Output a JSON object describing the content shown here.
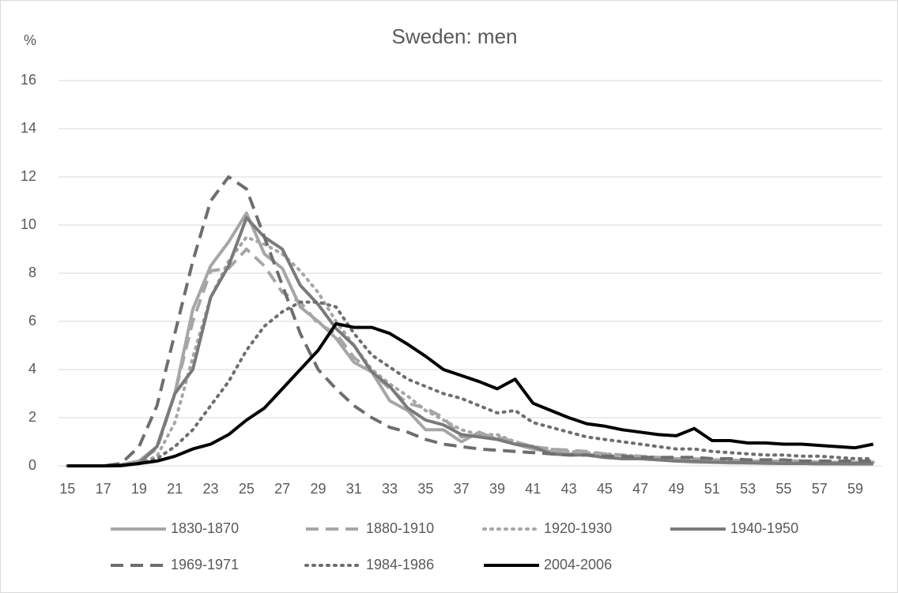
{
  "chart_data": {
    "type": "line",
    "title": "Sweden: men",
    "y_label": "%",
    "x": [
      15,
      16,
      17,
      18,
      19,
      20,
      21,
      22,
      23,
      24,
      25,
      26,
      27,
      28,
      29,
      30,
      31,
      32,
      33,
      34,
      35,
      36,
      37,
      38,
      39,
      40,
      41,
      42,
      43,
      44,
      45,
      46,
      47,
      48,
      49,
      50,
      51,
      52,
      53,
      54,
      55,
      56,
      57,
      58,
      59,
      60
    ],
    "xlim": [
      14.5,
      60.5
    ],
    "xticks": [
      15,
      17,
      19,
      21,
      23,
      25,
      27,
      29,
      31,
      33,
      35,
      37,
      39,
      41,
      43,
      45,
      47,
      49,
      51,
      53,
      55,
      57,
      59
    ],
    "ylim": [
      0,
      16
    ],
    "yticks": [
      0,
      2,
      4,
      6,
      8,
      10,
      12,
      14,
      16
    ],
    "grid": true,
    "legend": "bottom",
    "series": [
      {
        "name": "1830-1870",
        "color": "#a6a6a6",
        "dash": "solid",
        "values": [
          0,
          0,
          0,
          0.05,
          0.2,
          0.8,
          3,
          6.5,
          8.3,
          9.3,
          10.5,
          8.8,
          8.2,
          6.6,
          6,
          5.3,
          4.3,
          3.9,
          2.7,
          2.3,
          1.5,
          1.5,
          1,
          1.4,
          1.1,
          0.9,
          0.7,
          0.6,
          0.5,
          0.5,
          0.35,
          0.3,
          0.3,
          0.25,
          0.2,
          0.15,
          0.15,
          0.12,
          0.12,
          0.1,
          0.1,
          0.1,
          0.08,
          0.08,
          0.07,
          0.07
        ]
      },
      {
        "name": "1880-1910",
        "color": "#a6a6a6",
        "dash": "dashed",
        "values": [
          0,
          0,
          0,
          0.05,
          0.2,
          0.7,
          3,
          6,
          8.1,
          8.2,
          9,
          8.3,
          7.2,
          6.8,
          5.9,
          5.5,
          4.5,
          3.9,
          3.2,
          2.6,
          2.4,
          2,
          1.2,
          1.3,
          1.2,
          1,
          0.8,
          0.7,
          0.65,
          0.6,
          0.5,
          0.45,
          0.4,
          0.35,
          0.3,
          0.3,
          0.25,
          0.25,
          0.2,
          0.2,
          0.2,
          0.2,
          0.15,
          0.15,
          0.15,
          0.15
        ]
      },
      {
        "name": "1920-1930",
        "color": "#a6a6a6",
        "dash": "dotted",
        "values": [
          0,
          0,
          0,
          0,
          0.1,
          0.4,
          1.8,
          4.5,
          7,
          8.5,
          9.5,
          9.2,
          8.8,
          8.1,
          7.2,
          6,
          5,
          4,
          3.4,
          2.9,
          2.3,
          1.9,
          1.5,
          1.3,
          1.3,
          1,
          0.8,
          0.7,
          0.6,
          0.55,
          0.5,
          0.45,
          0.4,
          0.35,
          0.3,
          0.3,
          0.25,
          0.25,
          0.2,
          0.2,
          0.2,
          0.2,
          0.15,
          0.15,
          0.15,
          0.15
        ]
      },
      {
        "name": "1940-1950",
        "color": "#7a7a7a",
        "dash": "solid",
        "values": [
          0,
          0,
          0,
          0,
          0.1,
          0.8,
          3,
          4,
          7,
          8.3,
          10.3,
          9.5,
          9,
          7.5,
          6.7,
          5.7,
          5,
          3.9,
          3.3,
          2.4,
          1.9,
          1.7,
          1.3,
          1.2,
          1.1,
          0.9,
          0.8,
          0.5,
          0.45,
          0.45,
          0.35,
          0.3,
          0.3,
          0.25,
          0.2,
          0.2,
          0.15,
          0.15,
          0.12,
          0.12,
          0.1,
          0.1,
          0.1,
          0.1,
          0.1,
          0.1
        ]
      },
      {
        "name": "1969-1971",
        "color": "#6e6e6e",
        "dash": "dashed",
        "values": [
          0,
          0,
          0,
          0.1,
          0.8,
          2.5,
          5.5,
          8.5,
          11,
          12,
          11.5,
          9.5,
          7.5,
          5.5,
          4,
          3.2,
          2.5,
          2,
          1.6,
          1.4,
          1.1,
          0.9,
          0.8,
          0.7,
          0.65,
          0.6,
          0.55,
          0.5,
          0.45,
          0.45,
          0.4,
          0.4,
          0.35,
          0.35,
          0.35,
          0.35,
          0.3,
          0.3,
          0.25,
          0.25,
          0.25,
          0.2,
          0.2,
          0.2,
          0.2,
          0.2
        ]
      },
      {
        "name": "1984-1986",
        "color": "#6e6e6e",
        "dash": "dotted",
        "values": [
          0,
          0,
          0,
          0,
          0.1,
          0.3,
          0.8,
          1.5,
          2.5,
          3.5,
          4.8,
          5.8,
          6.4,
          6.8,
          6.8,
          6.6,
          5.5,
          4.6,
          4.1,
          3.6,
          3.3,
          3,
          2.8,
          2.5,
          2.2,
          2.3,
          1.8,
          1.6,
          1.4,
          1.2,
          1.1,
          1,
          0.9,
          0.8,
          0.7,
          0.7,
          0.6,
          0.55,
          0.5,
          0.45,
          0.45,
          0.4,
          0.4,
          0.35,
          0.3,
          0.3
        ]
      },
      {
        "name": "2004-2006",
        "color": "#000000",
        "dash": "solid",
        "values": [
          0,
          0,
          0,
          0.02,
          0.1,
          0.2,
          0.4,
          0.7,
          0.9,
          1.3,
          1.9,
          2.4,
          3.2,
          4,
          4.8,
          5.9,
          5.75,
          5.75,
          5.5,
          5.05,
          4.55,
          4,
          3.75,
          3.5,
          3.2,
          3.6,
          2.6,
          2.3,
          2,
          1.75,
          1.65,
          1.5,
          1.4,
          1.3,
          1.25,
          1.55,
          1.05,
          1.05,
          0.95,
          0.95,
          0.9,
          0.9,
          0.85,
          0.8,
          0.75,
          0.9
        ]
      }
    ]
  }
}
